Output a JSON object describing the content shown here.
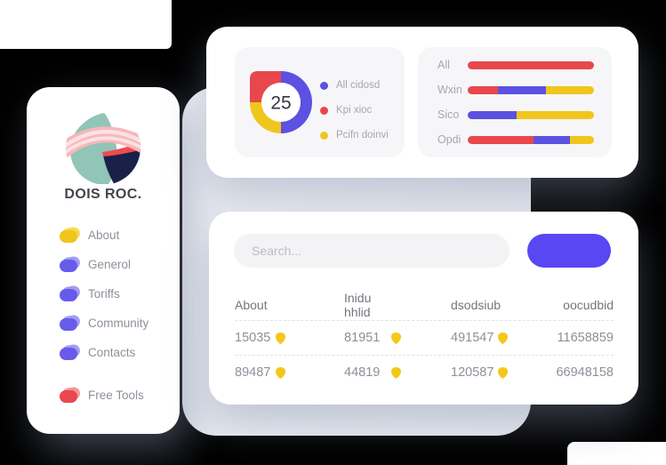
{
  "sidebar": {
    "brand": "DOIS ROC.",
    "logo": {
      "leaf_color": "#90c5b8",
      "wedge_color": "#1a2149",
      "sliver_color": "#ef4b50",
      "band_color": "#f8b6bb",
      "band_stripe_color": "#fce2e4"
    },
    "items": [
      {
        "label": "About",
        "color": "#f0c51c",
        "tint": "#f6da55",
        "gap_before": false
      },
      {
        "label": "Generol",
        "color": "#675ce9",
        "tint": "#a39af3",
        "gap_before": false
      },
      {
        "label": "Toriffs",
        "color": "#675ce9",
        "tint": "#a39af3",
        "gap_before": false
      },
      {
        "label": "Community",
        "color": "#675ce9",
        "tint": "#a39af3",
        "gap_before": false
      },
      {
        "label": "Contacts",
        "color": "#675ce9",
        "tint": "#a39af3",
        "gap_before": false
      },
      {
        "label": "Free Tools",
        "color": "#e8474c",
        "tint": "#f29598",
        "gap_before": true
      }
    ]
  },
  "chart_data": [
    {
      "type": "donut",
      "title": "",
      "center_label": "25",
      "legend_position": "right",
      "slices": [
        {
          "label": "All cidosd",
          "color": "#5c51e0",
          "value": 50,
          "start": 0,
          "end": 50
        },
        {
          "label": "Kpi xioc",
          "color": "#e8474c",
          "value": 25,
          "start": 75,
          "end": 100,
          "shape": "square-quadrant"
        },
        {
          "label": "Pcifn doinvi",
          "color": "#f0c61d",
          "value": 25,
          "start": 50,
          "end": 75
        }
      ]
    },
    {
      "type": "bar",
      "orientation": "horizontal",
      "stacked": true,
      "grid": false,
      "xlim": [
        0,
        100
      ],
      "categories": [
        "All",
        "Wxin",
        "Sico",
        "Opdi"
      ],
      "series": [
        {
          "name": "red",
          "color": "#e8474c",
          "values": [
            100,
            24,
            0,
            52
          ]
        },
        {
          "name": "blue",
          "color": "#5c51e0",
          "values": [
            0,
            38,
            39,
            29
          ]
        },
        {
          "name": "yellow",
          "color": "#f0c61d",
          "values": [
            0,
            38,
            61,
            19
          ]
        }
      ]
    }
  ],
  "search": {
    "placeholder": "Search...",
    "value": ""
  },
  "action_button": {
    "label": "",
    "color": "#5847f2"
  },
  "table": {
    "columns": [
      "About",
      "Inidu hhlid",
      "dsodsiub",
      "oocudbid"
    ],
    "badge_color": "#f3c81a",
    "badge_columns": [
      0,
      1,
      2
    ],
    "rows": [
      [
        "15035",
        "81951",
        "491547",
        "11658859"
      ],
      [
        "89487",
        "44819",
        "120587",
        "66948158"
      ]
    ]
  }
}
